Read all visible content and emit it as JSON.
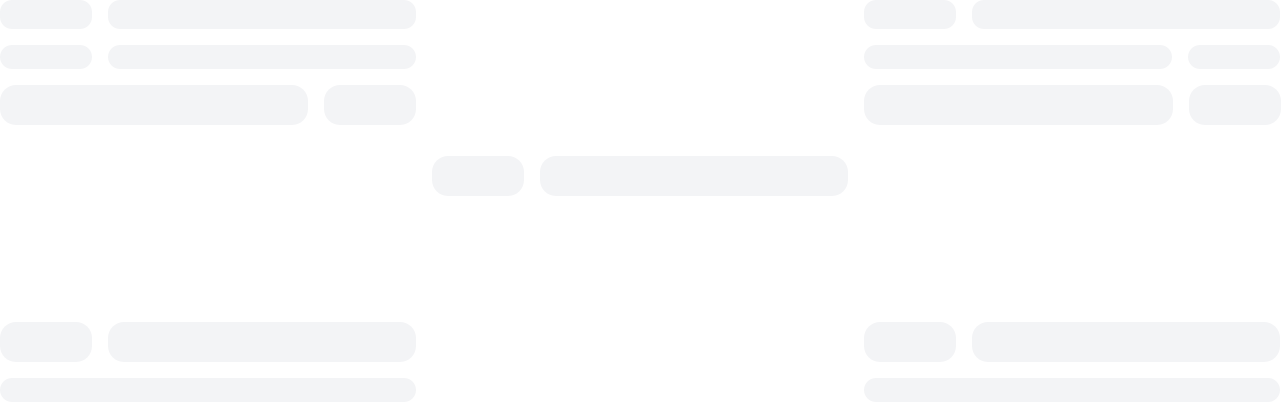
{
  "page": {
    "state": "loading",
    "placeholder_color": "#f3f4f6",
    "background_color": "#ffffff"
  },
  "skeleton_groups": [
    {
      "name": "top-left",
      "bars": 6
    },
    {
      "name": "top-right",
      "bars": 6
    },
    {
      "name": "center",
      "bars": 2
    },
    {
      "name": "bottom-left",
      "bars": 3
    },
    {
      "name": "bottom-right",
      "bars": 3
    }
  ]
}
